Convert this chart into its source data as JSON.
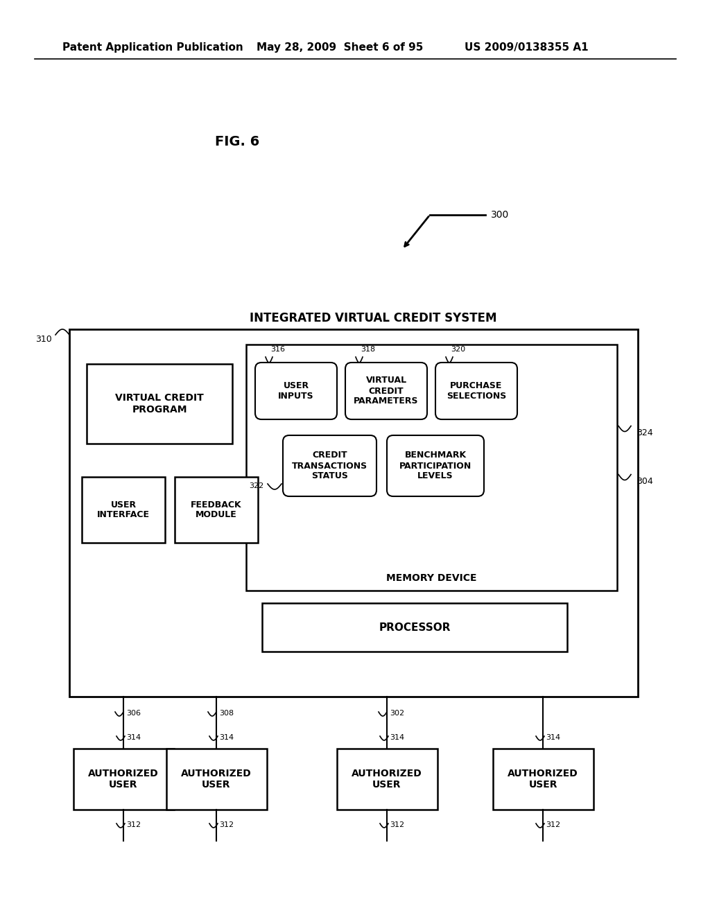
{
  "background_color": "#ffffff",
  "header_left": "Patent Application Publication",
  "header_mid": "May 28, 2009  Sheet 6 of 95",
  "header_right": "US 2009/0138355 A1",
  "fig_label": "FIG. 6",
  "title_system": "INTEGRATED VIRTUAL CREDIT SYSTEM",
  "label_300": "300",
  "label_310": "310",
  "label_304": "304",
  "label_306": "306",
  "label_308": "308",
  "label_302": "302",
  "label_316": "316",
  "label_318": "318",
  "label_320": "320",
  "label_322": "322",
  "label_324": "324",
  "label_312": "312",
  "label_314": "314",
  "box_virtual_credit_program": "VIRTUAL CREDIT\nPROGRAM",
  "box_user_interface": "USER\nINTERFACE",
  "box_feedback_module": "FEEDBACK\nMODULE",
  "box_processor": "PROCESSOR",
  "box_memory_device": "MEMORY DEVICE",
  "box_user_inputs": "USER\nINPUTS",
  "box_virtual_credit_params": "VIRTUAL\nCREDIT\nPARAMETERS",
  "box_purchase_selections": "PURCHASE\nSELECTIONS",
  "box_credit_transactions": "CREDIT\nTRANSACTIONS\nSTATUS",
  "box_benchmark": "BENCHMARK\nPARTICIPATION\nLEVELS",
  "box_authorized_user": "AUTHORIZED\nUSER",
  "text_color": "#000000",
  "line_color": "#000000"
}
